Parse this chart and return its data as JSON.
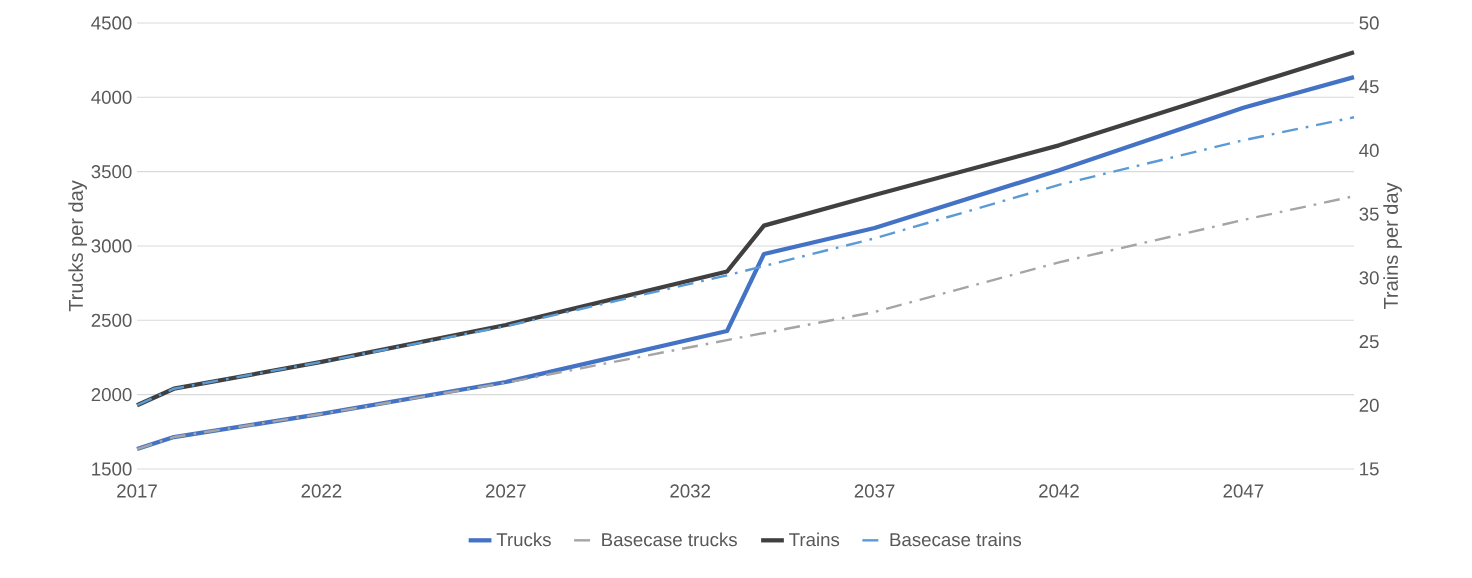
{
  "chart_data": {
    "type": "line",
    "ylabel": "Trucks per day",
    "y2label": "Trains per day",
    "xlim": [
      2017,
      2050
    ],
    "xticks": [
      2017,
      2022,
      2027,
      2032,
      2037,
      2042,
      2047
    ],
    "ylim": [
      1500,
      4500
    ],
    "yticks": [
      1500,
      2000,
      2500,
      3000,
      3500,
      4000,
      4500
    ],
    "y2lim": [
      15,
      50
    ],
    "y2ticks": [
      15,
      20,
      25,
      30,
      35,
      40,
      45,
      50
    ],
    "grid": "y",
    "legend": "bottom",
    "series": [
      {
        "name": "Trucks",
        "color": "#4472c4",
        "line_style": "solid",
        "x": [
          2017,
          2018,
          2022,
          2027,
          2033,
          2034,
          2037,
          2042,
          2047,
          2050
        ],
        "values": [
          1634,
          1715,
          1870,
          2085,
          2428,
          2946,
          3121,
          3510,
          3930,
          4136
        ]
      },
      {
        "name": "Basecase trucks",
        "color": "#a5a5a5",
        "line_style": "dashed",
        "x": [
          2017,
          2018,
          2022,
          2027,
          2033,
          2037,
          2042,
          2047,
          2050
        ],
        "values": [
          1634,
          1715,
          1870,
          2080,
          2367,
          2556,
          2890,
          3175,
          3335
        ]
      },
      {
        "name": "Trains",
        "color": "#404040",
        "line_style": "solid",
        "axis": "y2",
        "x": [
          2017,
          2018,
          2022,
          2027,
          2033,
          2034,
          2037,
          2042,
          2047,
          2050
        ],
        "values": [
          20.0,
          21.3,
          23.4,
          26.3,
          30.5,
          34.1,
          36.5,
          40.4,
          45.0,
          47.7
        ]
      },
      {
        "name": "Basecase trains",
        "color": "#5b9bd5",
        "line_style": "dashed",
        "axis": "y2",
        "x": [
          2017,
          2018,
          2022,
          2027,
          2033,
          2037,
          2042,
          2047,
          2050
        ],
        "values": [
          20.0,
          21.3,
          23.4,
          26.2,
          30.2,
          33.1,
          37.3,
          40.8,
          42.6
        ]
      }
    ]
  }
}
